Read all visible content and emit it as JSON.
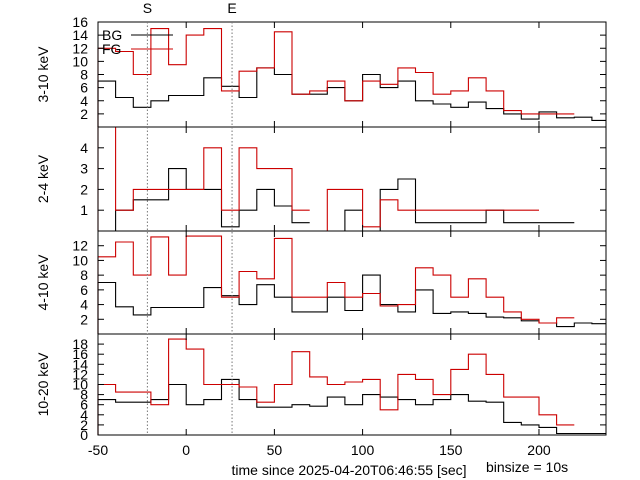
{
  "chart_data": {
    "type": "step",
    "xlabel": "time since 2025-04-20T06:46:55 [sec]",
    "note": "binsize = 10s",
    "xlim": [
      -50,
      238
    ],
    "x_ticks": [
      -50,
      0,
      50,
      100,
      150,
      200
    ],
    "x_tick_labels": [
      "-50",
      "0",
      "50",
      "100",
      "150",
      "200"
    ],
    "markers": [
      {
        "label": "S",
        "x": -22
      },
      {
        "label": "E",
        "x": 26
      }
    ],
    "legend": {
      "items": [
        "BG",
        "FG"
      ],
      "colors": [
        "#000000",
        "#cc0000"
      ],
      "placement": "top-left"
    },
    "bin_edges": [
      -50,
      -40,
      -30,
      -20,
      -10,
      0,
      10,
      20,
      30,
      40,
      50,
      60,
      70,
      80,
      90,
      100,
      110,
      120,
      130,
      140,
      150,
      160,
      170,
      180,
      190,
      200,
      210,
      220,
      230,
      238
    ],
    "panels": [
      {
        "ylabel": "3-10 keV",
        "ylim": [
          0,
          16
        ],
        "y_ticks": [
          2,
          4,
          6,
          8,
          10,
          12,
          14,
          16
        ],
        "y_tick_labels": [
          "2",
          "4",
          "6",
          "8",
          "10",
          "12",
          "14",
          "16"
        ],
        "series": [
          {
            "values": [
              7,
              4.5,
              3,
              4,
              4.8,
              4.8,
              7.5,
              6.2,
              4.5,
              9,
              8,
              5,
              5,
              6,
              4,
              8,
              6,
              7,
              4,
              3.5,
              3,
              3.8,
              2.8,
              2,
              1.2,
              2.3,
              1.4,
              1.5,
              1
            ]
          },
          {
            "values": [
              12,
              11.5,
              8,
              15,
              9.5,
              14,
              15,
              5.5,
              8.5,
              9,
              14.5,
              5,
              5.5,
              7,
              4,
              7,
              6.5,
              9,
              8.3,
              5,
              5.5,
              7.5,
              5.5,
              2.5,
              2,
              2,
              2,
              null,
              null
            ]
          }
        ]
      },
      {
        "ylabel": "2-4 keV",
        "ylim": [
          0,
          5
        ],
        "y_ticks": [
          1,
          2,
          3,
          4
        ],
        "y_tick_labels": [
          "1",
          "2",
          "3",
          "4"
        ],
        "series": [
          {
            "values": [
              null,
              1,
              1.5,
              1.5,
              3,
              2,
              2,
              0.2,
              1,
              2,
              1.2,
              0.4,
              null,
              null,
              1,
              null,
              2,
              2.5,
              0.4,
              0.4,
              0.4,
              0.4,
              1,
              0.4,
              0.4,
              0.4,
              0.4,
              null,
              null
            ]
          },
          {
            "values": [
              6,
              1,
              2,
              2,
              2,
              2,
              4,
              1,
              4,
              3,
              3,
              1,
              null,
              2,
              2,
              0.2,
              1.5,
              1,
              1,
              1,
              1,
              1,
              1,
              1,
              1,
              null,
              null,
              null,
              null
            ]
          }
        ]
      },
      {
        "ylabel": "4-10 keV",
        "ylim": [
          0,
          14
        ],
        "y_ticks": [
          2,
          4,
          6,
          8,
          10,
          12
        ],
        "y_tick_labels": [
          "2",
          "4",
          "6",
          "8",
          "10",
          "12"
        ],
        "series": [
          {
            "values": [
              7,
              3.7,
              2.6,
              3.6,
              3.6,
              3.6,
              6.3,
              5.2,
              4,
              6.7,
              5,
              3,
              3,
              5,
              3.2,
              8,
              4,
              3,
              6,
              2.8,
              3,
              2.8,
              2.3,
              2.2,
              1.8,
              1.5,
              1,
              1.5,
              1.4
            ]
          },
          {
            "values": [
              10.5,
              12.5,
              8,
              13.2,
              8,
              13.3,
              13.3,
              5,
              8.5,
              7.5,
              13,
              5,
              5,
              7,
              5,
              5.5,
              3.8,
              4,
              9,
              8,
              5,
              7.5,
              5,
              3,
              2,
              1.5,
              2.2,
              null,
              null
            ]
          }
        ]
      },
      {
        "ylabel": "10-20 keV",
        "ylim": [
          0,
          20
        ],
        "y_ticks": [
          0,
          2,
          4,
          6,
          8,
          10,
          12,
          14,
          16,
          18
        ],
        "y_tick_labels": [
          "0",
          "2",
          "4",
          "6",
          "8",
          "10",
          "12",
          "14",
          "16",
          "18"
        ],
        "series": [
          {
            "values": [
              7,
              6.5,
              6.5,
              7,
              10,
              6,
              7,
              11,
              7,
              5.5,
              5.5,
              6,
              5.7,
              7.5,
              6,
              8,
              7.5,
              7,
              6,
              7,
              8,
              6.7,
              6.5,
              2.5,
              2,
              1.5,
              0.3,
              0.3,
              0.3
            ]
          },
          {
            "values": [
              10,
              8.5,
              8.5,
              6,
              19,
              17,
              10,
              10,
              9.5,
              6.5,
              10,
              16.5,
              11.5,
              10,
              10.5,
              11,
              5,
              12,
              11,
              8,
              13,
              16,
              12,
              7.5,
              7.5,
              4,
              2,
              null,
              null
            ]
          }
        ]
      }
    ]
  }
}
